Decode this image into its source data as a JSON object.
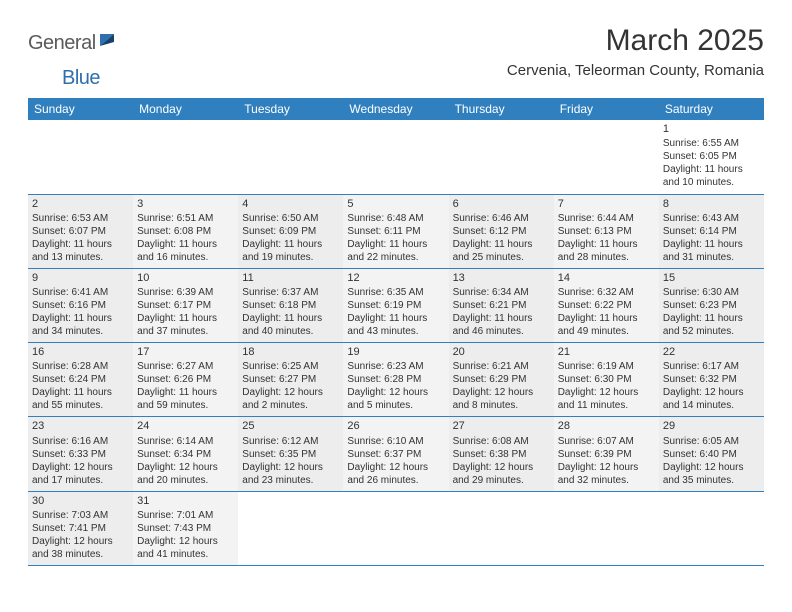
{
  "logo": {
    "part1": "General",
    "part2": "Blue"
  },
  "title": "March 2025",
  "location": "Cervenia, Teleorman County, Romania",
  "colors": {
    "header_bg": "#3080c0",
    "header_text": "#ffffff",
    "cell_gray": "#ededed",
    "cell_white": "#ffffff",
    "border": "#3080c0",
    "text": "#333333",
    "logo_gray": "#5a5a5a",
    "logo_blue": "#2f6fb0"
  },
  "weekdays": [
    "Sunday",
    "Monday",
    "Tuesday",
    "Wednesday",
    "Thursday",
    "Friday",
    "Saturday"
  ],
  "days": {
    "1": {
      "sr": "6:55 AM",
      "ss": "6:05 PM",
      "dl": "11 hours and 10 minutes."
    },
    "2": {
      "sr": "6:53 AM",
      "ss": "6:07 PM",
      "dl": "11 hours and 13 minutes."
    },
    "3": {
      "sr": "6:51 AM",
      "ss": "6:08 PM",
      "dl": "11 hours and 16 minutes."
    },
    "4": {
      "sr": "6:50 AM",
      "ss": "6:09 PM",
      "dl": "11 hours and 19 minutes."
    },
    "5": {
      "sr": "6:48 AM",
      "ss": "6:11 PM",
      "dl": "11 hours and 22 minutes."
    },
    "6": {
      "sr": "6:46 AM",
      "ss": "6:12 PM",
      "dl": "11 hours and 25 minutes."
    },
    "7": {
      "sr": "6:44 AM",
      "ss": "6:13 PM",
      "dl": "11 hours and 28 minutes."
    },
    "8": {
      "sr": "6:43 AM",
      "ss": "6:14 PM",
      "dl": "11 hours and 31 minutes."
    },
    "9": {
      "sr": "6:41 AM",
      "ss": "6:16 PM",
      "dl": "11 hours and 34 minutes."
    },
    "10": {
      "sr": "6:39 AM",
      "ss": "6:17 PM",
      "dl": "11 hours and 37 minutes."
    },
    "11": {
      "sr": "6:37 AM",
      "ss": "6:18 PM",
      "dl": "11 hours and 40 minutes."
    },
    "12": {
      "sr": "6:35 AM",
      "ss": "6:19 PM",
      "dl": "11 hours and 43 minutes."
    },
    "13": {
      "sr": "6:34 AM",
      "ss": "6:21 PM",
      "dl": "11 hours and 46 minutes."
    },
    "14": {
      "sr": "6:32 AM",
      "ss": "6:22 PM",
      "dl": "11 hours and 49 minutes."
    },
    "15": {
      "sr": "6:30 AM",
      "ss": "6:23 PM",
      "dl": "11 hours and 52 minutes."
    },
    "16": {
      "sr": "6:28 AM",
      "ss": "6:24 PM",
      "dl": "11 hours and 55 minutes."
    },
    "17": {
      "sr": "6:27 AM",
      "ss": "6:26 PM",
      "dl": "11 hours and 59 minutes."
    },
    "18": {
      "sr": "6:25 AM",
      "ss": "6:27 PM",
      "dl": "12 hours and 2 minutes."
    },
    "19": {
      "sr": "6:23 AM",
      "ss": "6:28 PM",
      "dl": "12 hours and 5 minutes."
    },
    "20": {
      "sr": "6:21 AM",
      "ss": "6:29 PM",
      "dl": "12 hours and 8 minutes."
    },
    "21": {
      "sr": "6:19 AM",
      "ss": "6:30 PM",
      "dl": "12 hours and 11 minutes."
    },
    "22": {
      "sr": "6:17 AM",
      "ss": "6:32 PM",
      "dl": "12 hours and 14 minutes."
    },
    "23": {
      "sr": "6:16 AM",
      "ss": "6:33 PM",
      "dl": "12 hours and 17 minutes."
    },
    "24": {
      "sr": "6:14 AM",
      "ss": "6:34 PM",
      "dl": "12 hours and 20 minutes."
    },
    "25": {
      "sr": "6:12 AM",
      "ss": "6:35 PM",
      "dl": "12 hours and 23 minutes."
    },
    "26": {
      "sr": "6:10 AM",
      "ss": "6:37 PM",
      "dl": "12 hours and 26 minutes."
    },
    "27": {
      "sr": "6:08 AM",
      "ss": "6:38 PM",
      "dl": "12 hours and 29 minutes."
    },
    "28": {
      "sr": "6:07 AM",
      "ss": "6:39 PM",
      "dl": "12 hours and 32 minutes."
    },
    "29": {
      "sr": "6:05 AM",
      "ss": "6:40 PM",
      "dl": "12 hours and 35 minutes."
    },
    "30": {
      "sr": "7:03 AM",
      "ss": "7:41 PM",
      "dl": "12 hours and 38 minutes."
    },
    "31": {
      "sr": "7:01 AM",
      "ss": "7:43 PM",
      "dl": "12 hours and 41 minutes."
    }
  },
  "layout": [
    [
      null,
      null,
      null,
      null,
      null,
      null,
      "1"
    ],
    [
      "2",
      "3",
      "4",
      "5",
      "6",
      "7",
      "8"
    ],
    [
      "9",
      "10",
      "11",
      "12",
      "13",
      "14",
      "15"
    ],
    [
      "16",
      "17",
      "18",
      "19",
      "20",
      "21",
      "22"
    ],
    [
      "23",
      "24",
      "25",
      "26",
      "27",
      "28",
      "29"
    ],
    [
      "30",
      "31",
      null,
      null,
      null,
      null,
      null
    ]
  ],
  "labels": {
    "sunrise": "Sunrise: ",
    "sunset": "Sunset: ",
    "daylight": "Daylight: "
  }
}
